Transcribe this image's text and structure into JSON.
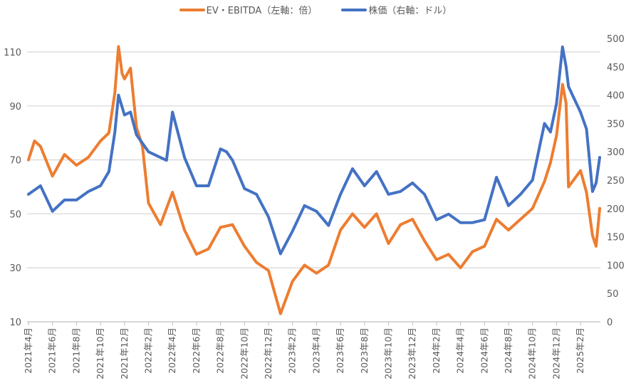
{
  "chart_data": {
    "type": "line",
    "title": "",
    "legend_position": "top",
    "grid": true,
    "x_unit": "months since 2021年4月",
    "x_tick_labels": [
      "2021年4月",
      "2021年6月",
      "2021年8月",
      "2021年10月",
      "2021年12月",
      "2022年2月",
      "2022年4月",
      "2022年6月",
      "2022年8月",
      "2022年10月",
      "2022年12月",
      "2023年2月",
      "2023年4月",
      "2023年6月",
      "2023年8月",
      "2023年10月",
      "2023年12月",
      "2024年2月",
      "2024年4月",
      "2024年6月",
      "2024年8月",
      "2024年10月",
      "2024年12月",
      "2025年2月"
    ],
    "xlim": [
      0,
      47.6
    ],
    "y_left": {
      "label": "EV・EBITDA（左軸：倍）",
      "ylim": [
        10,
        115
      ],
      "ticks": [
        10,
        30,
        50,
        70,
        90,
        110
      ]
    },
    "y_right": {
      "label": "株価（右軸：ドル）",
      "ylim": [
        0,
        500
      ],
      "ticks": [
        0,
        50,
        100,
        150,
        200,
        250,
        300,
        350,
        400,
        450,
        500
      ]
    },
    "series": [
      {
        "name": "EV・EBITDA（左軸：倍）",
        "axis": "left",
        "color": "#ED7D31",
        "x": [
          0,
          0.5,
          1,
          2,
          3,
          4,
          5,
          6,
          6.7,
          7.2,
          7.5,
          7.8,
          8,
          8.5,
          9,
          9.5,
          10,
          11,
          12,
          13,
          14,
          15,
          16,
          17,
          18,
          19,
          20,
          21,
          22,
          23,
          24,
          25,
          26,
          27,
          28,
          29,
          30,
          31,
          32,
          33,
          34,
          35,
          36,
          37,
          38,
          39,
          40,
          41,
          42,
          43,
          43.5,
          44,
          44.5,
          44.8,
          45,
          46,
          46.5,
          47,
          47.3,
          47.6
        ],
        "values": [
          70,
          77,
          75,
          64,
          72,
          68,
          71,
          77,
          80,
          95,
          112,
          102,
          100,
          104,
          82,
          75,
          54,
          46,
          58,
          44,
          35,
          37,
          45,
          46,
          38,
          32,
          29,
          13,
          25,
          31,
          28,
          31,
          44,
          50,
          45,
          50,
          39,
          46,
          48,
          40,
          33,
          35,
          30,
          36,
          38,
          48,
          44,
          48,
          52,
          62,
          69,
          79,
          98,
          91,
          60,
          66,
          58,
          42,
          38,
          52
        ]
      },
      {
        "name": "株価（右軸：ドル）",
        "axis": "right",
        "color": "#4472C4",
        "x": [
          0,
          1,
          2,
          3,
          4,
          5,
          6,
          6.7,
          7.2,
          7.5,
          8,
          8.5,
          9,
          10,
          11,
          11.5,
          12,
          13,
          14,
          15,
          16,
          16.5,
          17,
          18,
          19,
          20,
          21,
          22,
          23,
          24,
          25,
          26,
          27,
          28,
          29,
          30,
          31,
          32,
          33,
          34,
          35,
          36,
          37,
          38,
          39,
          40,
          41,
          42,
          43,
          43.5,
          44,
          44.5,
          44.8,
          45,
          46,
          46.5,
          47,
          47.3,
          47.6
        ],
        "values": [
          225,
          240,
          195,
          215,
          215,
          230,
          240,
          265,
          335,
          400,
          365,
          370,
          330,
          300,
          290,
          285,
          370,
          290,
          240,
          240,
          305,
          300,
          285,
          235,
          225,
          185,
          120,
          160,
          205,
          195,
          170,
          225,
          270,
          240,
          265,
          225,
          230,
          245,
          225,
          180,
          190,
          175,
          175,
          180,
          255,
          205,
          225,
          250,
          350,
          335,
          385,
          485,
          450,
          415,
          370,
          340,
          230,
          245,
          290
        ]
      }
    ]
  }
}
